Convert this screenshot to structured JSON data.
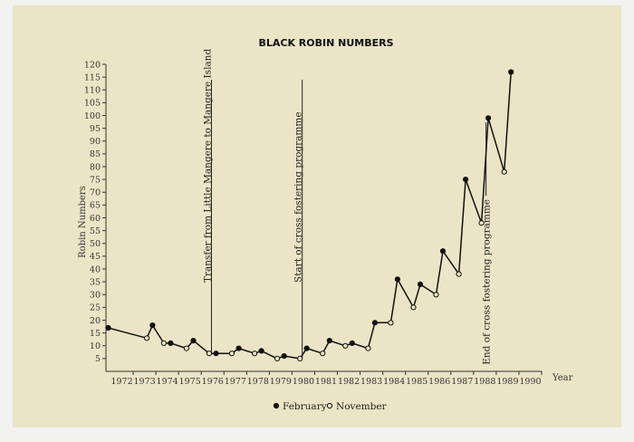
{
  "chart_data": {
    "type": "line",
    "title": "BLACK ROBIN NUMBERS",
    "xlabel": "Year",
    "ylabel": "Robin Numbers",
    "xlim": [
      1971.8,
      1991.0
    ],
    "ylim": [
      0,
      120
    ],
    "y_ticks": [
      5,
      10,
      15,
      20,
      25,
      30,
      35,
      40,
      45,
      50,
      55,
      60,
      65,
      70,
      75,
      80,
      85,
      90,
      95,
      100,
      105,
      110,
      115,
      120
    ],
    "x_ticks": [
      "1972",
      "1973",
      "1974",
      "1975",
      "1976",
      "1977",
      "1978",
      "1979",
      "1980",
      "1981",
      "1982",
      "1983",
      "1984",
      "1985",
      "1986",
      "1987",
      "1988",
      "1989",
      "1990"
    ],
    "grid": false,
    "legend": [
      {
        "label": "February",
        "marker": "filled"
      },
      {
        "label": "November",
        "marker": "open"
      }
    ],
    "series": [
      {
        "points": [
          {
            "x": 1971.9,
            "y": 17,
            "m": "February"
          },
          {
            "x": 1973.6,
            "y": 13,
            "m": "November"
          },
          {
            "x": 1973.85,
            "y": 18,
            "m": "February"
          },
          {
            "x": 1974.35,
            "y": 11,
            "m": "November"
          },
          {
            "x": 1974.65,
            "y": 11,
            "m": "February"
          },
          {
            "x": 1975.35,
            "y": 9,
            "m": "November"
          },
          {
            "x": 1975.65,
            "y": 12,
            "m": "February"
          },
          {
            "x": 1976.35,
            "y": 7,
            "m": "November"
          },
          {
            "x": 1976.65,
            "y": 7,
            "m": "February"
          },
          {
            "x": 1977.35,
            "y": 7,
            "m": "November"
          },
          {
            "x": 1977.65,
            "y": 9,
            "m": "February"
          },
          {
            "x": 1978.35,
            "y": 7,
            "m": "November"
          },
          {
            "x": 1978.65,
            "y": 8,
            "m": "February"
          },
          {
            "x": 1979.35,
            "y": 5,
            "m": "November"
          },
          {
            "x": 1979.65,
            "y": 6,
            "m": "February"
          },
          {
            "x": 1980.35,
            "y": 5,
            "m": "November"
          },
          {
            "x": 1980.65,
            "y": 9,
            "m": "February"
          },
          {
            "x": 1981.35,
            "y": 7,
            "m": "November"
          },
          {
            "x": 1981.65,
            "y": 12,
            "m": "February"
          },
          {
            "x": 1982.35,
            "y": 10,
            "m": "November"
          },
          {
            "x": 1982.65,
            "y": 11,
            "m": "February"
          },
          {
            "x": 1983.35,
            "y": 9,
            "m": "November"
          },
          {
            "x": 1983.65,
            "y": 19,
            "m": "February"
          },
          {
            "x": 1984.35,
            "y": 19,
            "m": "November"
          },
          {
            "x": 1984.65,
            "y": 36,
            "m": "February"
          },
          {
            "x": 1985.35,
            "y": 25,
            "m": "November"
          },
          {
            "x": 1985.65,
            "y": 34,
            "m": "February"
          },
          {
            "x": 1986.35,
            "y": 30,
            "m": "November"
          },
          {
            "x": 1986.65,
            "y": 47,
            "m": "February"
          },
          {
            "x": 1987.35,
            "y": 38,
            "m": "November"
          },
          {
            "x": 1987.65,
            "y": 75,
            "m": "February"
          },
          {
            "x": 1988.35,
            "y": 58,
            "m": "November"
          },
          {
            "x": 1988.65,
            "y": 99,
            "m": "February"
          },
          {
            "x": 1989.35,
            "y": 78,
            "m": "November"
          },
          {
            "x": 1989.65,
            "y": 117,
            "m": "February"
          }
        ]
      }
    ],
    "annotations": [
      {
        "text": "Transfer from Little Mangere to Mangere Island",
        "x": 1976.45,
        "y": 7
      },
      {
        "text": "Start of cross fostering programme",
        "x": 1980.45,
        "y": 5
      },
      {
        "text": "End of cross fostering programme",
        "x": 1988.55,
        "y": 98
      }
    ]
  }
}
